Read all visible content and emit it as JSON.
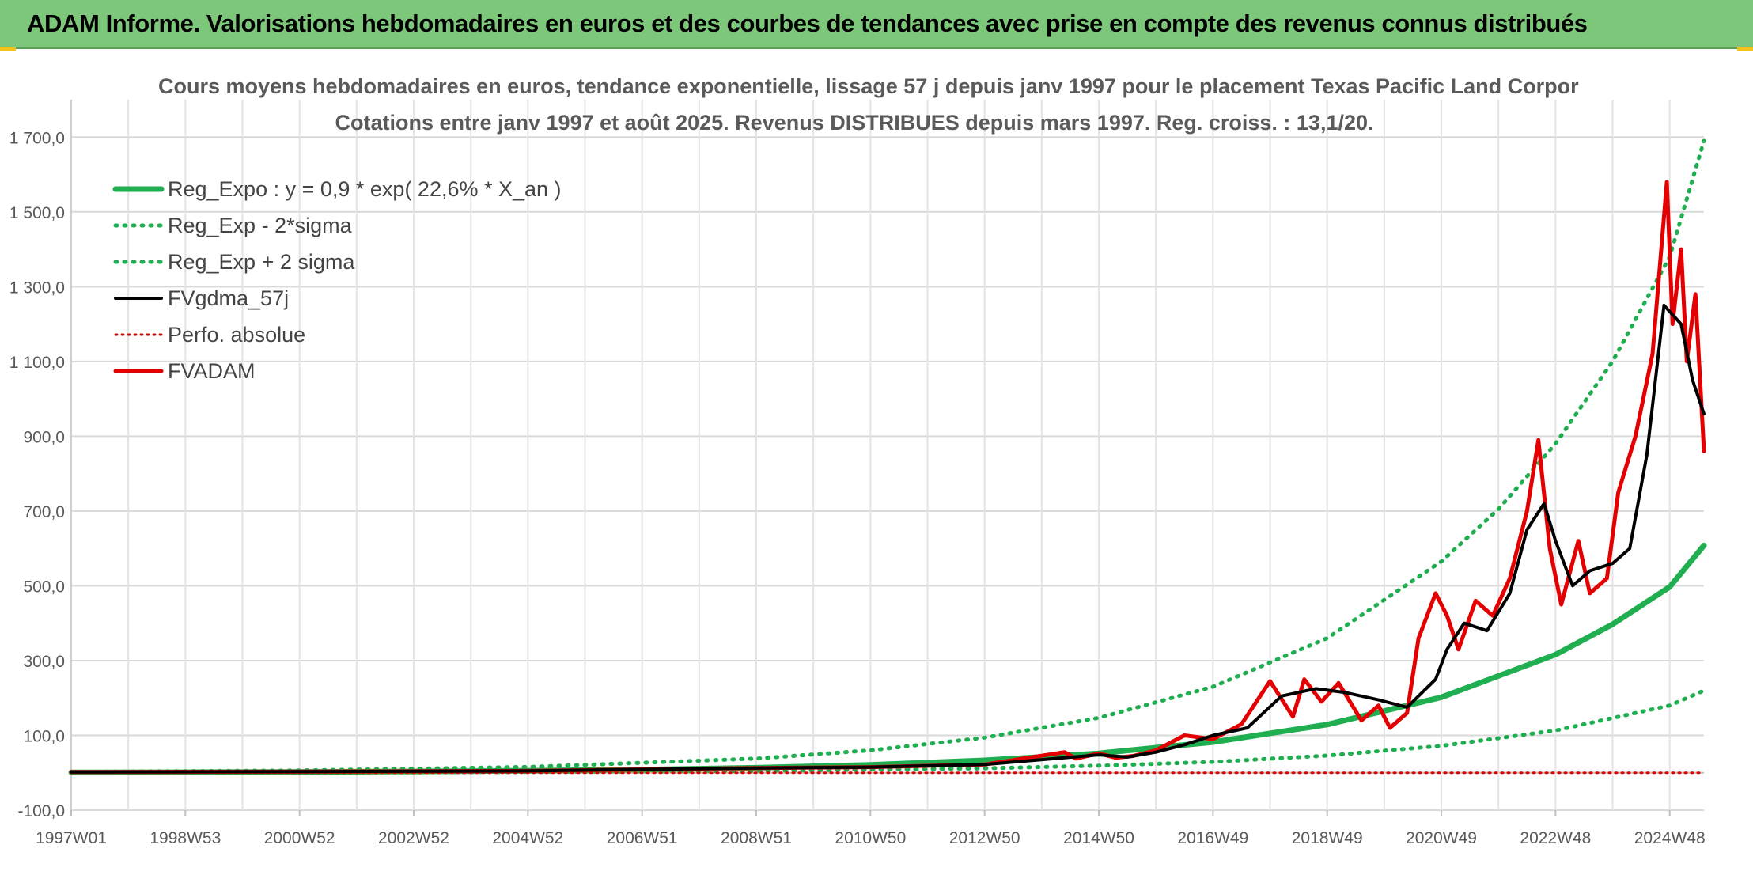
{
  "header": {
    "banner_title": "ADAM Informe. Valorisations hebdomadaires en euros et des courbes de tendances avec prise en compte des revenus connus distribués"
  },
  "chart_data": {
    "type": "line",
    "title": "Cours moyens hebdomadaires en euros, tendance exponentielle, lissage 57 j depuis janv 1997 pour le placement Texas Pacific Land Corpor",
    "subtitle": "Cotations entre janv 1997 et août 2025. Revenus DISTRIBUES depuis mars 1997. Reg. croiss. : 13,1/20.",
    "xlabel": "",
    "ylabel": "",
    "ylim": [
      -100,
      1800
    ],
    "y_ticks": [
      "1 700,0",
      "1 500,0",
      "1 300,0",
      "1 100,0",
      "900,0",
      "700,0",
      "500,0",
      "300,0",
      "100,0",
      "-100,0"
    ],
    "y_tick_values": [
      1700,
      1500,
      1300,
      1100,
      900,
      700,
      500,
      300,
      100,
      -100
    ],
    "x_ticks": [
      "1997W01",
      "1998W53",
      "2000W52",
      "2002W52",
      "2004W52",
      "2006W51",
      "2008W51",
      "2010W50",
      "2012W50",
      "2014W50",
      "2016W49",
      "2018W49",
      "2020W49",
      "2022W48",
      "2024W48"
    ],
    "x_tick_years": [
      1997.0,
      1999.0,
      2001.0,
      2003.0,
      2005.0,
      2007.0,
      2009.0,
      2011.0,
      2013.0,
      2015.0,
      2017.0,
      2019.0,
      2021.0,
      2023.0,
      2025.0
    ],
    "xlim": [
      1997.0,
      2025.6
    ],
    "grid": true,
    "legend_position": "top-left",
    "colors": {
      "reg_expo": "#1fae50",
      "reg_band": "#1fae50",
      "smoothed": "#000000",
      "perfo": "#e00000",
      "fvadam": "#e40000",
      "grid": "#d9d9d9",
      "axis_text": "#595959"
    },
    "series": [
      {
        "name": "Reg_Expo : y = 0,9 * exp( 22,6% *  X_an )",
        "style": "solid-thick-green",
        "x": [
          1997,
          1999,
          2001,
          2003,
          2005,
          2007,
          2009,
          2011,
          2013,
          2015,
          2017,
          2019,
          2021,
          2023,
          2024,
          2025,
          2025.6
        ],
        "values": [
          0.9,
          1.4,
          2.2,
          3.5,
          5.5,
          8.6,
          13.5,
          21.2,
          33.3,
          52,
          82,
          129,
          202,
          316,
          397,
          497,
          608
        ]
      },
      {
        "name": "Reg_Exp - 2*sigma",
        "style": "dotted-green",
        "x": [
          1997,
          2001,
          2005,
          2009,
          2013,
          2015,
          2017,
          2019,
          2021,
          2023,
          2025,
          2025.6
        ],
        "values": [
          0.3,
          0.8,
          2.0,
          4.9,
          12,
          19,
          29,
          46,
          72,
          113,
          180,
          220
        ]
      },
      {
        "name": "Reg_Exp + 2 sigma",
        "style": "dotted-green",
        "x": [
          1997,
          2001,
          2005,
          2009,
          2011,
          2013,
          2015,
          2017,
          2019,
          2021,
          2022,
          2023,
          2024,
          2025,
          2025.6
        ],
        "values": [
          2.5,
          6.2,
          15.5,
          38,
          60,
          94,
          147,
          230,
          360,
          565,
          705,
          880,
          1100,
          1380,
          1690
        ]
      },
      {
        "name": "FVgdma_57j",
        "style": "solid-black",
        "x": [
          1997,
          2001,
          2005,
          2008.5,
          2011,
          2013,
          2014.4,
          2015.0,
          2015.5,
          2016.0,
          2016.5,
          2017.0,
          2017.6,
          2018.2,
          2018.8,
          2019.3,
          2019.9,
          2020.4,
          2020.9,
          2021.1,
          2021.4,
          2021.8,
          2022.2,
          2022.5,
          2022.8,
          2023.0,
          2023.3,
          2023.6,
          2024.0,
          2024.3,
          2024.6,
          2024.9,
          2025.2,
          2025.4,
          2025.6
        ],
        "values": [
          2,
          3,
          5,
          12,
          15,
          22,
          40,
          48,
          42,
          55,
          75,
          100,
          120,
          205,
          225,
          215,
          195,
          175,
          250,
          330,
          400,
          380,
          480,
          650,
          720,
          620,
          500,
          540,
          560,
          600,
          850,
          1250,
          1200,
          1050,
          960
        ]
      },
      {
        "name": "Perfo. absolue",
        "style": "dotted-red",
        "x": [
          1997,
          2025.6
        ],
        "values": [
          0,
          0
        ]
      },
      {
        "name": "FVADAM",
        "style": "solid-thick-red",
        "x": [
          1997,
          2001,
          2005,
          2008.5,
          2011,
          2013,
          2014.4,
          2014.6,
          2015.0,
          2015.3,
          2015.6,
          2016.0,
          2016.5,
          2017.0,
          2017.5,
          2018.0,
          2018.4,
          2018.6,
          2018.9,
          2019.2,
          2019.6,
          2019.9,
          2020.1,
          2020.4,
          2020.6,
          2020.9,
          2021.1,
          2021.3,
          2021.6,
          2021.9,
          2022.2,
          2022.5,
          2022.7,
          2022.9,
          2023.1,
          2023.4,
          2023.6,
          2023.9,
          2024.1,
          2024.4,
          2024.7,
          2024.95,
          2025.05,
          2025.2,
          2025.3,
          2025.45,
          2025.6
        ],
        "values": [
          2,
          3,
          5,
          12,
          15,
          22,
          55,
          38,
          52,
          40,
          45,
          60,
          100,
          90,
          130,
          245,
          150,
          250,
          190,
          240,
          140,
          180,
          120,
          160,
          360,
          480,
          420,
          330,
          460,
          420,
          520,
          700,
          890,
          600,
          450,
          620,
          480,
          520,
          750,
          900,
          1120,
          1580,
          1200,
          1400,
          1100,
          1280,
          860
        ]
      }
    ]
  }
}
